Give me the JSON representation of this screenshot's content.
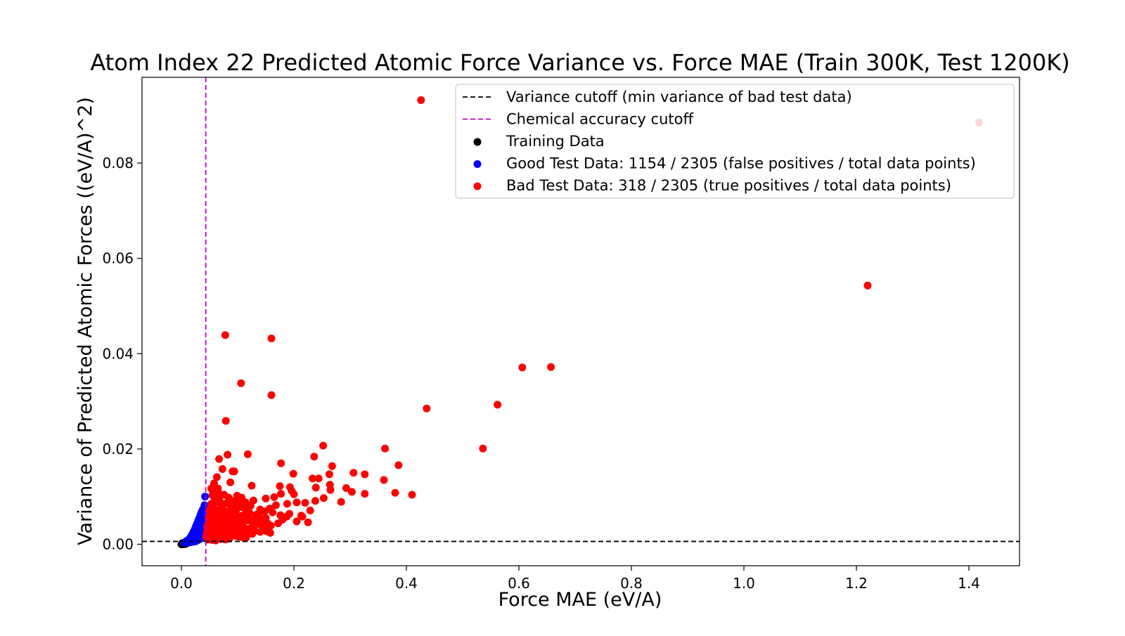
{
  "chart_data": {
    "type": "scatter",
    "title": "Atom Index 22 Predicted Atomic Force Variance vs. Force MAE (Train 300K, Test 1200K)",
    "xlabel": "Force MAE (eV/A)",
    "ylabel": "Variance of Predicted Atomic Forces ((eV/A)^2)",
    "xlim": [
      -0.07,
      1.49
    ],
    "ylim": [
      -0.0045,
      0.098
    ],
    "xticks": [
      0.0,
      0.2,
      0.4,
      0.6,
      0.8,
      1.0,
      1.2,
      1.4
    ],
    "xtick_labels": [
      "0.0",
      "0.2",
      "0.4",
      "0.6",
      "0.8",
      "1.0",
      "1.2",
      "1.4"
    ],
    "yticks": [
      0.0,
      0.02,
      0.04,
      0.06,
      0.08
    ],
    "ytick_labels": [
      "0.00",
      "0.02",
      "0.04",
      "0.06",
      "0.08"
    ],
    "grid": false,
    "legend_position": "top-right",
    "reference_lines": [
      {
        "name": "Variance cutoff (min variance of bad test data)",
        "orientation": "horizontal",
        "value": 0.0006,
        "color": "#000000",
        "style": "dashed"
      },
      {
        "name": "Chemical accuracy cutoff",
        "orientation": "vertical",
        "value": 0.0433,
        "color": "#c000c0",
        "style": "dashed"
      }
    ],
    "series": [
      {
        "name": "Training Data",
        "color": "#000000",
        "points": [
          [
            0.0,
            0.0
          ],
          [
            0.002,
            0.0001
          ],
          [
            0.004,
            0.0
          ],
          [
            0.006,
            0.0002
          ],
          [
            0.003,
            0.0003
          ],
          [
            0.008,
            0.0001
          ],
          [
            0.001,
            0.0002
          ],
          [
            0.005,
            0.0001
          ],
          [
            0.007,
            0.0003
          ],
          [
            0.009,
            0.0002
          ]
        ]
      },
      {
        "name": "Good Test Data: 1154 / 2305 (false positives / total data points)",
        "color": "#0000ff",
        "points": [
          [
            0.005,
            0.0003
          ],
          [
            0.008,
            0.0006
          ],
          [
            0.01,
            0.0004
          ],
          [
            0.012,
            0.0009
          ],
          [
            0.014,
            0.0007
          ],
          [
            0.015,
            0.0013
          ],
          [
            0.017,
            0.001
          ],
          [
            0.018,
            0.0018
          ],
          [
            0.019,
            0.0015
          ],
          [
            0.02,
            0.0022
          ],
          [
            0.021,
            0.0012
          ],
          [
            0.022,
            0.0027
          ],
          [
            0.023,
            0.0019
          ],
          [
            0.024,
            0.0032
          ],
          [
            0.025,
            0.0025
          ],
          [
            0.026,
            0.0038
          ],
          [
            0.027,
            0.0021
          ],
          [
            0.028,
            0.0044
          ],
          [
            0.029,
            0.0034
          ],
          [
            0.03,
            0.005
          ],
          [
            0.031,
            0.0029
          ],
          [
            0.032,
            0.0055
          ],
          [
            0.033,
            0.0041
          ],
          [
            0.034,
            0.0062
          ],
          [
            0.035,
            0.0047
          ],
          [
            0.036,
            0.0068
          ],
          [
            0.037,
            0.0036
          ],
          [
            0.038,
            0.0073
          ],
          [
            0.039,
            0.0053
          ],
          [
            0.04,
            0.006
          ],
          [
            0.041,
            0.0082
          ],
          [
            0.042,
            0.0045
          ],
          [
            0.036,
            0.0013
          ],
          [
            0.03,
            0.0009
          ],
          [
            0.025,
            0.0006
          ],
          [
            0.04,
            0.0016
          ],
          [
            0.033,
            0.0011
          ],
          [
            0.028,
            0.0016
          ],
          [
            0.038,
            0.0027
          ],
          [
            0.042,
            0.01
          ],
          [
            0.041,
            0.0067
          ],
          [
            0.037,
            0.0058
          ],
          [
            0.034,
            0.003
          ],
          [
            0.039,
            0.004
          ],
          [
            0.043,
            0.003
          ],
          [
            0.02,
            0.0005
          ],
          [
            0.015,
            0.0004
          ],
          [
            0.032,
            0.0022
          ]
        ]
      },
      {
        "name": "Bad Test Data: 318 / 2305 (true positives / total data points)",
        "color": "#ff0000",
        "points": [
          [
            0.426,
            0.0932
          ],
          [
            1.418,
            0.0885
          ],
          [
            1.22,
            0.0543
          ],
          [
            0.078,
            0.0439
          ],
          [
            0.16,
            0.0432
          ],
          [
            0.106,
            0.0338
          ],
          [
            0.16,
            0.0313
          ],
          [
            0.079,
            0.0259
          ],
          [
            0.606,
            0.0371
          ],
          [
            0.657,
            0.0372
          ],
          [
            0.562,
            0.0293
          ],
          [
            0.436,
            0.0285
          ],
          [
            0.536,
            0.0201
          ],
          [
            0.252,
            0.0207
          ],
          [
            0.362,
            0.0201
          ],
          [
            0.236,
            0.0184
          ],
          [
            0.082,
            0.0188
          ],
          [
            0.118,
            0.0189
          ],
          [
            0.067,
            0.0179
          ],
          [
            0.177,
            0.017
          ],
          [
            0.268,
            0.0164
          ],
          [
            0.386,
            0.0166
          ],
          [
            0.073,
            0.0158
          ],
          [
            0.091,
            0.0153
          ],
          [
            0.094,
            0.0153
          ],
          [
            0.199,
            0.0148
          ],
          [
            0.306,
            0.015
          ],
          [
            0.326,
            0.0147
          ],
          [
            0.263,
            0.0147
          ],
          [
            0.233,
            0.0138
          ],
          [
            0.244,
            0.0138
          ],
          [
            0.36,
            0.0135
          ],
          [
            0.063,
            0.0141
          ],
          [
            0.058,
            0.0128
          ],
          [
            0.087,
            0.013
          ],
          [
            0.125,
            0.0123
          ],
          [
            0.175,
            0.0122
          ],
          [
            0.193,
            0.012
          ],
          [
            0.264,
            0.0125
          ],
          [
            0.239,
            0.0119
          ],
          [
            0.265,
            0.0114
          ],
          [
            0.293,
            0.0118
          ],
          [
            0.303,
            0.011
          ],
          [
            0.326,
            0.0106
          ],
          [
            0.38,
            0.0108
          ],
          [
            0.41,
            0.0104
          ],
          [
            0.053,
            0.0117
          ],
          [
            0.06,
            0.011
          ],
          [
            0.068,
            0.0105
          ],
          [
            0.076,
            0.0104
          ],
          [
            0.084,
            0.0098
          ],
          [
            0.099,
            0.0102
          ],
          [
            0.107,
            0.0098
          ],
          [
            0.114,
            0.0088
          ],
          [
            0.128,
            0.0092
          ],
          [
            0.15,
            0.0096
          ],
          [
            0.165,
            0.0099
          ],
          [
            0.177,
            0.0106
          ],
          [
            0.196,
            0.0112
          ],
          [
            0.2,
            0.0105
          ],
          [
            0.188,
            0.0085
          ],
          [
            0.205,
            0.0088
          ],
          [
            0.22,
            0.0087
          ],
          [
            0.238,
            0.0091
          ],
          [
            0.253,
            0.0097
          ],
          [
            0.284,
            0.0089
          ],
          [
            0.053,
            0.0085
          ],
          [
            0.06,
            0.0088
          ],
          [
            0.068,
            0.0091
          ],
          [
            0.073,
            0.008
          ],
          [
            0.088,
            0.0075
          ],
          [
            0.095,
            0.0083
          ],
          [
            0.104,
            0.0078
          ],
          [
            0.115,
            0.007
          ],
          [
            0.121,
            0.0066
          ],
          [
            0.133,
            0.0062
          ],
          [
            0.148,
            0.0069
          ],
          [
            0.157,
            0.0075
          ],
          [
            0.162,
            0.0067
          ],
          [
            0.176,
            0.0061
          ],
          [
            0.18,
            0.0052
          ],
          [
            0.187,
            0.0058
          ],
          [
            0.205,
            0.0048
          ],
          [
            0.225,
            0.0046
          ],
          [
            0.05,
            0.0072
          ],
          [
            0.057,
            0.0066
          ],
          [
            0.064,
            0.0071
          ],
          [
            0.07,
            0.0063
          ],
          [
            0.078,
            0.0057
          ],
          [
            0.086,
            0.006
          ],
          [
            0.094,
            0.0053
          ],
          [
            0.101,
            0.0056
          ],
          [
            0.109,
            0.0049
          ],
          [
            0.118,
            0.005
          ],
          [
            0.127,
            0.0044
          ],
          [
            0.135,
            0.0042
          ],
          [
            0.145,
            0.0037
          ],
          [
            0.155,
            0.0032
          ],
          [
            0.158,
            0.0024
          ],
          [
            0.048,
            0.0055
          ],
          [
            0.055,
            0.0049
          ],
          [
            0.062,
            0.0046
          ],
          [
            0.069,
            0.0043
          ],
          [
            0.076,
            0.0039
          ],
          [
            0.083,
            0.0036
          ],
          [
            0.09,
            0.0034
          ],
          [
            0.097,
            0.0031
          ],
          [
            0.104,
            0.0029
          ],
          [
            0.111,
            0.0027
          ],
          [
            0.119,
            0.0025
          ],
          [
            0.126,
            0.0022
          ],
          [
            0.046,
            0.0038
          ],
          [
            0.052,
            0.0034
          ],
          [
            0.058,
            0.003
          ],
          [
            0.065,
            0.0027
          ],
          [
            0.072,
            0.0024
          ],
          [
            0.079,
            0.0021
          ],
          [
            0.086,
            0.0019
          ],
          [
            0.094,
            0.0018
          ],
          [
            0.101,
            0.0016
          ],
          [
            0.108,
            0.0015
          ],
          [
            0.115,
            0.0014
          ],
          [
            0.045,
            0.0022
          ],
          [
            0.05,
            0.0018
          ],
          [
            0.056,
            0.0015
          ],
          [
            0.063,
            0.0013
          ],
          [
            0.07,
            0.0011
          ],
          [
            0.078,
            0.001
          ],
          [
            0.085,
            0.0012
          ],
          [
            0.047,
            0.001
          ],
          [
            0.054,
            0.0009
          ],
          [
            0.061,
            0.0008
          ],
          [
            0.049,
            0.0026
          ],
          [
            0.057,
            0.0021
          ],
          [
            0.067,
            0.0034
          ],
          [
            0.074,
            0.0029
          ],
          [
            0.081,
            0.0044
          ],
          [
            0.092,
            0.004
          ],
          [
            0.099,
            0.0045
          ],
          [
            0.11,
            0.0037
          ],
          [
            0.122,
            0.0033
          ],
          [
            0.13,
            0.0028
          ],
          [
            0.14,
            0.0026
          ],
          [
            0.061,
            0.0058
          ],
          [
            0.066,
            0.0052
          ],
          [
            0.072,
            0.0049
          ],
          [
            0.08,
            0.0068
          ],
          [
            0.089,
            0.0064
          ],
          [
            0.097,
            0.007
          ],
          [
            0.108,
            0.006
          ],
          [
            0.116,
            0.0057
          ],
          [
            0.052,
            0.0063
          ],
          [
            0.056,
            0.0079
          ],
          [
            0.059,
            0.0097
          ],
          [
            0.064,
            0.0093
          ],
          [
            0.071,
            0.0083
          ],
          [
            0.08,
            0.0086
          ],
          [
            0.088,
            0.009
          ],
          [
            0.112,
            0.0076
          ],
          [
            0.123,
            0.0081
          ],
          [
            0.14,
            0.0073
          ],
          [
            0.048,
            0.0044
          ],
          [
            0.053,
            0.004
          ],
          [
            0.046,
            0.003
          ],
          [
            0.051,
            0.0012
          ],
          [
            0.044,
            0.0016
          ],
          [
            0.058,
            0.0037
          ],
          [
            0.063,
            0.002
          ],
          [
            0.068,
            0.0017
          ],
          [
            0.076,
            0.0015
          ],
          [
            0.083,
            0.0028
          ],
          [
            0.09,
            0.0024
          ],
          [
            0.103,
            0.0022
          ],
          [
            0.112,
            0.0019
          ],
          [
            0.118,
            0.0032
          ],
          [
            0.128,
            0.0036
          ],
          [
            0.136,
            0.0048
          ],
          [
            0.144,
            0.0052
          ],
          [
            0.168,
            0.0082
          ],
          [
            0.213,
            0.006
          ],
          [
            0.172,
            0.0044
          ],
          [
            0.192,
            0.0064
          ],
          [
            0.215,
            0.0058
          ],
          [
            0.229,
            0.0071
          ],
          [
            0.082,
            0.0047
          ],
          [
            0.094,
            0.0049
          ],
          [
            0.086,
            0.0026
          ],
          [
            0.101,
            0.0041
          ],
          [
            0.12,
            0.0056
          ],
          [
            0.131,
            0.0051
          ],
          [
            0.07,
            0.0077
          ],
          [
            0.075,
            0.0071
          ],
          [
            0.065,
            0.0117
          ],
          [
            0.055,
            0.0103
          ],
          [
            0.097,
            0.0093
          ],
          [
            0.105,
            0.0087
          ],
          [
            0.138,
            0.0064
          ],
          [
            0.15,
            0.0055
          ],
          [
            0.154,
            0.0043
          ],
          [
            0.159,
            0.0039
          ],
          [
            0.146,
            0.0031
          ],
          [
            0.152,
            0.0027
          ]
        ]
      }
    ]
  }
}
